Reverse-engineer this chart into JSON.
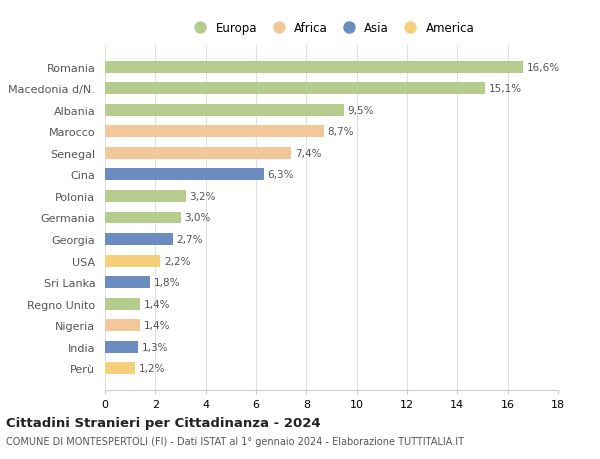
{
  "countries": [
    "Romania",
    "Macedonia d/N.",
    "Albania",
    "Marocco",
    "Senegal",
    "Cina",
    "Polonia",
    "Germania",
    "Georgia",
    "USA",
    "Sri Lanka",
    "Regno Unito",
    "Nigeria",
    "India",
    "Perù"
  ],
  "values": [
    16.6,
    15.1,
    9.5,
    8.7,
    7.4,
    6.3,
    3.2,
    3.0,
    2.7,
    2.2,
    1.8,
    1.4,
    1.4,
    1.3,
    1.2
  ],
  "labels": [
    "16,6%",
    "15,1%",
    "9,5%",
    "8,7%",
    "7,4%",
    "6,3%",
    "3,2%",
    "3,0%",
    "2,7%",
    "2,2%",
    "1,8%",
    "1,4%",
    "1,4%",
    "1,3%",
    "1,2%"
  ],
  "continents": [
    "Europa",
    "Europa",
    "Europa",
    "Africa",
    "Africa",
    "Asia",
    "Europa",
    "Europa",
    "Asia",
    "America",
    "Asia",
    "Europa",
    "Africa",
    "Asia",
    "America"
  ],
  "colors": {
    "Europa": "#b5cc8e",
    "Africa": "#f2c89b",
    "Asia": "#6b8cbf",
    "America": "#f5d07a"
  },
  "legend_order": [
    "Europa",
    "Africa",
    "Asia",
    "America"
  ],
  "title": "Cittadini Stranieri per Cittadinanza - 2024",
  "subtitle": "COMUNE DI MONTESPERTOLI (FI) - Dati ISTAT al 1° gennaio 2024 - Elaborazione TUTTITALIA.IT",
  "xlim": [
    0,
    18
  ],
  "xticks": [
    0,
    2,
    4,
    6,
    8,
    10,
    12,
    14,
    16,
    18
  ],
  "background_color": "#ffffff",
  "grid_color": "#e0e0e0",
  "bar_height": 0.55
}
